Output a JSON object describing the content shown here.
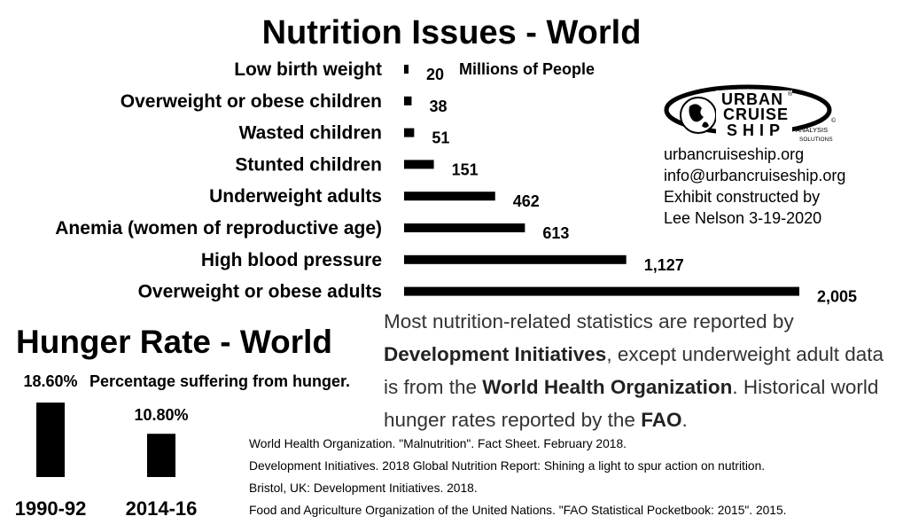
{
  "chart_data": [
    {
      "type": "bar",
      "orientation": "horizontal",
      "title": "Nutrition Issues - World",
      "units_label": "Millions of People",
      "categories": [
        "Low birth weight",
        "Overweight or obese children",
        "Wasted children",
        "Stunted children",
        "Underweight adults",
        "Anemia (women of reproductive age)",
        "High blood pressure",
        "Overweight or obese adults"
      ],
      "values": [
        20,
        38,
        51,
        151,
        462,
        613,
        1127,
        2005
      ],
      "value_labels": [
        "20",
        "38",
        "51",
        "151",
        "462",
        "613",
        "1,127",
        "2,005"
      ],
      "bar_color": "#000000",
      "grid": false,
      "legend": "none"
    },
    {
      "type": "bar",
      "orientation": "vertical",
      "title": "Hunger Rate - World",
      "caption": "Percentage suffering from hunger.",
      "categories": [
        "1990-92",
        "2014-16"
      ],
      "values": [
        18.6,
        10.8
      ],
      "value_labels": [
        "18.60%",
        "10.80%"
      ],
      "bar_color": "#000000",
      "grid": false,
      "legend": "none"
    }
  ],
  "logo": {
    "line1": "URBAN",
    "line2": "CRUISE",
    "line3": "SHIP",
    "tagline1": "ANALYSIS",
    "tagline2": "SOLUTIONS",
    "registered": "®",
    "copyright": "©"
  },
  "contact": {
    "website": "urbancruiseship.org",
    "email": "info@urbancruiseship.org",
    "credit_line1": "Exhibit constructed by",
    "credit_line2": "Lee Nelson 3-19-2020"
  },
  "note": {
    "part1": "Most nutrition-related statistics are reported by ",
    "org1": "Development Initiatives",
    "part2": ", except underweight adult data is from the ",
    "org2": "World Health Organization",
    "part3": ". Historical world hunger rates reported by the ",
    "org3": "FAO",
    "part4": "."
  },
  "references": [
    "World Health Organization. \"Malnutrition\". Fact Sheet. February 2018.",
    "Development Initiatives. 2018 Global Nutrition Report: Shining a light to spur action on nutrition.",
    "Bristol, UK: Development Initiatives. 2018.",
    "Food and Agriculture Organization of the United Nations. \"FAO Statistical Pocketbook: 2015\". 2015."
  ]
}
